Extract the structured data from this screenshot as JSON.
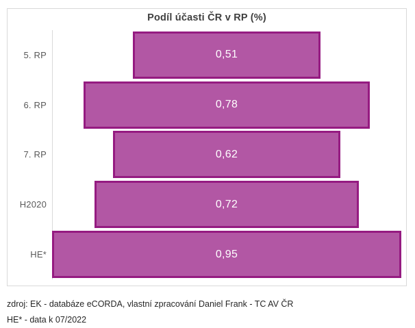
{
  "chart_data": {
    "type": "bar",
    "subtype": "centered-funnel",
    "orientation": "horizontal",
    "title": "Podíl účasti ČR v RP (%)",
    "categories": [
      "5. RP",
      "6. RP",
      "7. RP",
      "H2020",
      "HE*"
    ],
    "values": [
      0.51,
      0.78,
      0.62,
      0.72,
      0.95
    ],
    "value_labels": [
      "0,51",
      "0,78",
      "0,62",
      "0,72",
      "0,95"
    ],
    "xlim": [
      0,
      0.95
    ],
    "grid": false,
    "legend": false,
    "colors": {
      "bar_fill": "#b257a4",
      "bar_border": "#951b81",
      "value_label": "#ffffff",
      "category_label": "#595959",
      "title": "#404040",
      "axis_line": "#d9d9d9",
      "chart_border": "#d9d9d9"
    }
  },
  "footer": {
    "source": "zdroj: EK - databáze eCORDA, vlastní zpracování Daniel Frank - TC AV ČR",
    "note": "HE* - data k 07/2022"
  }
}
